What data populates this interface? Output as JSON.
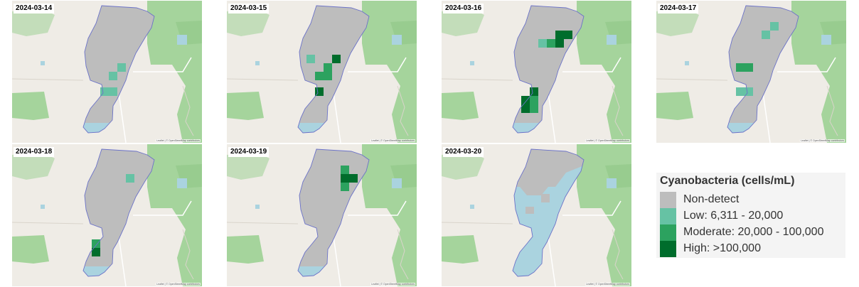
{
  "panels": [
    {
      "date": "2024-03-14",
      "water_state": "normal",
      "blooms": [
        {
          "c": 3,
          "r": 5,
          "level": "Low"
        },
        {
          "c": 3,
          "r": 6,
          "level": "Low"
        },
        {
          "c": 2,
          "r": 6,
          "level": "Low"
        },
        {
          "c": 4,
          "r": 4,
          "level": "Low"
        }
      ]
    },
    {
      "date": "2024-03-15",
      "water_state": "normal",
      "blooms": [
        {
          "c": 1,
          "r": 3,
          "level": "Low"
        },
        {
          "c": 4,
          "r": 3,
          "level": "High"
        },
        {
          "c": 3,
          "r": 4,
          "level": "Moderate"
        },
        {
          "c": 2,
          "r": 5,
          "level": "Moderate"
        },
        {
          "c": 3,
          "r": 5,
          "level": "Moderate"
        },
        {
          "c": 2,
          "r": 6,
          "level": "High"
        }
      ]
    },
    {
      "date": "2024-03-16",
      "water_state": "normal",
      "blooms": [
        {
          "c": 5,
          "r": 1,
          "level": "High"
        },
        {
          "c": 6,
          "r": 1,
          "level": "High"
        },
        {
          "c": 4,
          "r": 2,
          "level": "Moderate"
        },
        {
          "c": 5,
          "r": 2,
          "level": "High"
        },
        {
          "c": 3,
          "r": 2,
          "level": "Low"
        },
        {
          "c": 2,
          "r": 6,
          "level": "High"
        },
        {
          "c": 2,
          "r": 7,
          "level": "Moderate"
        },
        {
          "c": 1,
          "r": 7,
          "level": "High"
        },
        {
          "c": 1,
          "r": 8,
          "level": "High"
        },
        {
          "c": 2,
          "r": 8,
          "level": "Moderate"
        }
      ]
    },
    {
      "date": "2024-03-17",
      "water_state": "normal",
      "blooms": [
        {
          "c": 5,
          "r": 0,
          "level": "Low"
        },
        {
          "c": 4,
          "r": 1,
          "level": "Low"
        },
        {
          "c": 1,
          "r": 4,
          "level": "Moderate"
        },
        {
          "c": 2,
          "r": 4,
          "level": "Moderate"
        },
        {
          "c": 2,
          "r": 6,
          "level": "Low"
        },
        {
          "c": 1,
          "r": 6,
          "level": "Low"
        }
      ]
    },
    {
      "date": "2024-03-18",
      "water_state": "normal",
      "blooms": [
        {
          "c": 5,
          "r": 1,
          "level": "Low"
        },
        {
          "c": 1,
          "r": 8,
          "level": "High"
        },
        {
          "c": 1,
          "r": 7,
          "level": "Moderate"
        }
      ]
    },
    {
      "date": "2024-03-19",
      "water_state": "normal",
      "blooms": [
        {
          "c": 5,
          "r": 0,
          "level": "Moderate"
        },
        {
          "c": 5,
          "r": 1,
          "level": "High"
        },
        {
          "c": 6,
          "r": 1,
          "level": "High"
        },
        {
          "c": 5,
          "r": 2,
          "level": "Moderate"
        }
      ]
    },
    {
      "date": "2024-03-20",
      "water_state": "mostly-undetected",
      "blooms": []
    }
  ],
  "attribution": "Leaflet | © OpenStreetMap contributors",
  "legend": {
    "title": "Cyanobacteria (cells/mL)",
    "items": [
      {
        "label": "Non-detect",
        "color": "#bdbdbd"
      },
      {
        "label": "Low: 6,311 - 20,000",
        "color": "#66c2a4"
      },
      {
        "label": "Moderate: 20,000 - 100,000",
        "color": "#2ca25f"
      },
      {
        "label": "High: >100,000",
        "color": "#006d2c"
      }
    ]
  },
  "colors": {
    "land": "#efece6",
    "forest": "#a5d49c",
    "water_blue": "#aad3df",
    "lake_outline": "#6b72c8",
    "no_data_blue": "#aad3df"
  }
}
